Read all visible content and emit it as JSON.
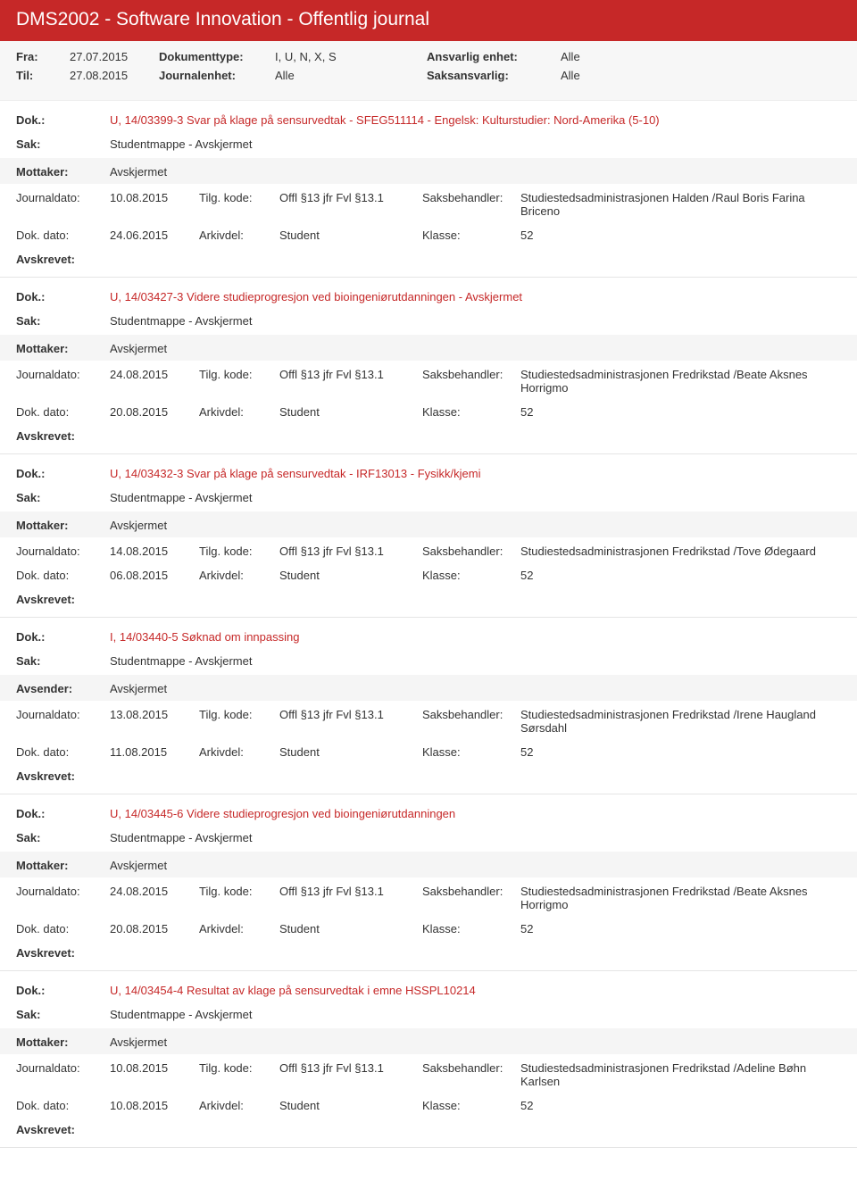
{
  "header": {
    "title": "DMS2002 - Software Innovation - Offentlig journal"
  },
  "filter": {
    "fra_label": "Fra:",
    "fra_value": "27.07.2015",
    "til_label": "Til:",
    "til_value": "27.08.2015",
    "dokumenttype_label": "Dokumenttype:",
    "dokumenttype_value": "I, U, N, X, S",
    "journalenhet_label": "Journalenhet:",
    "journalenhet_value": "Alle",
    "ansvarlig_enhet_label": "Ansvarlig enhet:",
    "ansvarlig_enhet_value": "Alle",
    "saksansvarlig_label": "Saksansvarlig:",
    "saksansvarlig_value": "Alle"
  },
  "labels": {
    "dok": "Dok.:",
    "sak": "Sak:",
    "mottaker": "Mottaker:",
    "avsender": "Avsender:",
    "journaldato": "Journaldato:",
    "tilgkode": "Tilg. kode:",
    "saksbehandler": "Saksbehandler:",
    "dokdato": "Dok. dato:",
    "arkivdel": "Arkivdel:",
    "klasse": "Klasse:",
    "avskrevet": "Avskrevet:"
  },
  "entries": [
    {
      "dok": "U, 14/03399-3 Svar på klage på sensurvedtak - SFEG511114 - Engelsk: Kulturstudier: Nord-Amerika (5-10)",
      "sak": "Studentmappe - Avskjermet",
      "party_label": "Mottaker:",
      "party_value": "Avskjermet",
      "journaldato": "10.08.2015",
      "tilgkode": "Offl §13 jfr Fvl §13.1",
      "saksbehandler": "Studiestedsadministrasjonen Halden /Raul Boris Farina Briceno",
      "dokdato": "24.06.2015",
      "arkivdel": "Student",
      "klasse": "52"
    },
    {
      "dok": "U, 14/03427-3 Videre studieprogresjon ved bioingeniørutdanningen - Avskjermet",
      "sak": "Studentmappe - Avskjermet",
      "party_label": "Mottaker:",
      "party_value": "Avskjermet",
      "journaldato": "24.08.2015",
      "tilgkode": "Offl §13 jfr Fvl §13.1",
      "saksbehandler": "Studiestedsadministrasjonen Fredrikstad /Beate Aksnes Horrigmo",
      "dokdato": "20.08.2015",
      "arkivdel": "Student",
      "klasse": "52"
    },
    {
      "dok": "U, 14/03432-3 Svar på klage på sensurvedtak - IRF13013 - Fysikk/kjemi",
      "sak": "Studentmappe - Avskjermet",
      "party_label": "Mottaker:",
      "party_value": "Avskjermet",
      "journaldato": "14.08.2015",
      "tilgkode": "Offl §13 jfr Fvl §13.1",
      "saksbehandler": "Studiestedsadministrasjonen Fredrikstad /Tove Ødegaard",
      "dokdato": "06.08.2015",
      "arkivdel": "Student",
      "klasse": "52"
    },
    {
      "dok": "I, 14/03440-5 Søknad om innpassing",
      "sak": "Studentmappe - Avskjermet",
      "party_label": "Avsender:",
      "party_value": "Avskjermet",
      "journaldato": "13.08.2015",
      "tilgkode": "Offl §13 jfr Fvl §13.1",
      "saksbehandler": "Studiestedsadministrasjonen Fredrikstad /Irene Haugland Sørsdahl",
      "dokdato": "11.08.2015",
      "arkivdel": "Student",
      "klasse": "52"
    },
    {
      "dok": "U, 14/03445-6 Videre studieprogresjon ved bioingeniørutdanningen",
      "sak": "Studentmappe - Avskjermet",
      "party_label": "Mottaker:",
      "party_value": "Avskjermet",
      "journaldato": "24.08.2015",
      "tilgkode": "Offl §13 jfr Fvl §13.1",
      "saksbehandler": "Studiestedsadministrasjonen Fredrikstad /Beate Aksnes Horrigmo",
      "dokdato": "20.08.2015",
      "arkivdel": "Student",
      "klasse": "52"
    },
    {
      "dok": "U, 14/03454-4 Resultat av klage på sensurvedtak i emne HSSPL10214",
      "sak": "Studentmappe - Avskjermet",
      "party_label": "Mottaker:",
      "party_value": "Avskjermet",
      "journaldato": "10.08.2015",
      "tilgkode": "Offl §13 jfr Fvl §13.1",
      "saksbehandler": "Studiestedsadministrasjonen Fredrikstad /Adeline Bøhn Karlsen",
      "dokdato": "10.08.2015",
      "arkivdel": "Student",
      "klasse": "52"
    }
  ]
}
